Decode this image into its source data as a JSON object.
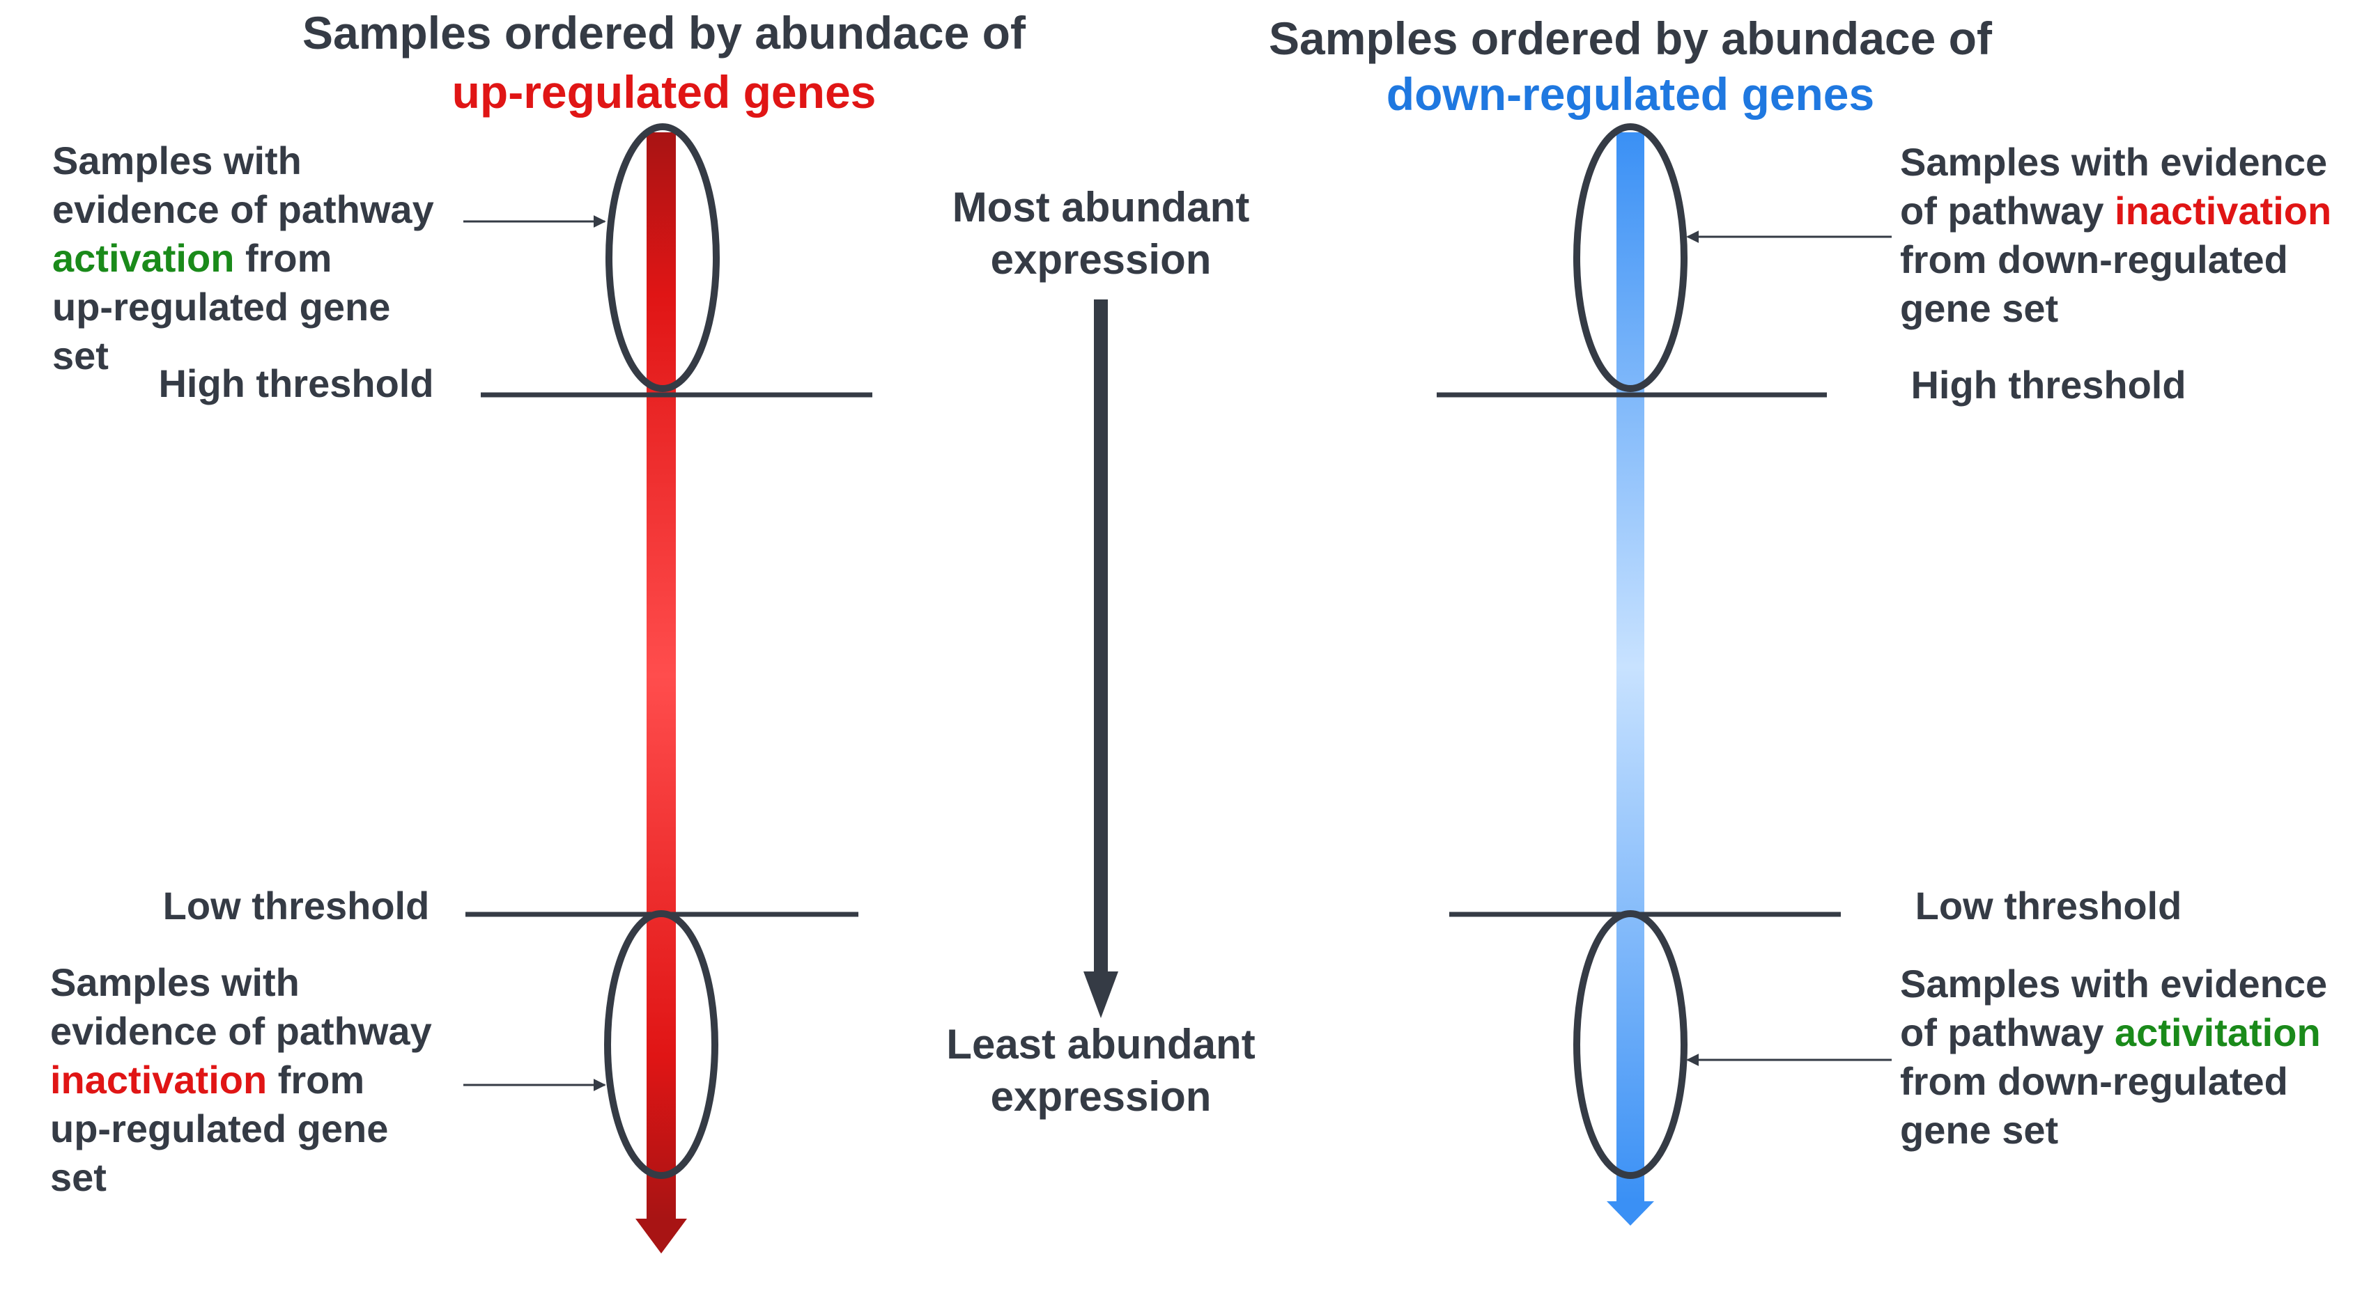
{
  "colors": {
    "text": "#353b45",
    "red": "#e01515",
    "red_dark": "#a81414",
    "red_light": "#ff4d4d",
    "blue": "#1f78e0",
    "blue_bar": "#3a90f5",
    "blue_light": "#c8e2ff",
    "green": "#1a8a1a",
    "line": "#353b45"
  },
  "left_column": {
    "title_line1": "Samples ordered by abundace of",
    "title_line2": "up-regulated genes",
    "high_threshold": "High threshold",
    "low_threshold": "Low threshold",
    "top_note": {
      "line1": "Samples with",
      "line2_pre": "evidence of pathway",
      "line3_colored": "activation",
      "line3_post": " from",
      "line4": "up-regulated gene",
      "line5": "set"
    },
    "bottom_note": {
      "line1": "Samples with",
      "line2": "evidence of pathway",
      "line3_colored": "inactivation",
      "line3_post": " from",
      "line4": "up-regulated gene",
      "line5": "set"
    }
  },
  "center_column": {
    "top_line1": "Most abundant",
    "top_line2": "expression",
    "bottom_line1": "Least abundant",
    "bottom_line2": "expression"
  },
  "right_column": {
    "title_line1": "Samples ordered by abundace of",
    "title_line2": "down-regulated genes",
    "high_threshold": "High threshold",
    "low_threshold": "Low threshold",
    "top_note": {
      "line1": "Samples with evidence",
      "line2_pre": "of pathway ",
      "line2_colored": "inactivation",
      "line3": "from down-regulated",
      "line4": "gene set"
    },
    "bottom_note": {
      "line1": "Samples with evidence",
      "line2_pre": "of pathway ",
      "line2_colored": "activitation",
      "line3": "from down-regulated",
      "line4": "gene set"
    }
  }
}
